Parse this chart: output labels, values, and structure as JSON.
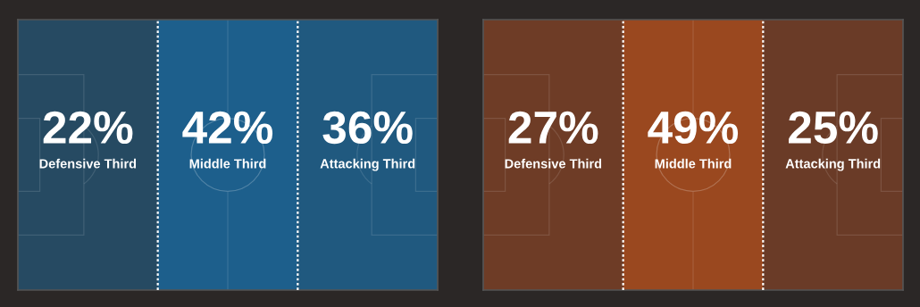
{
  "chart_data": [
    {
      "type": "heatmap",
      "categories": [
        "Defensive Third",
        "Middle Third",
        "Attacking Third"
      ],
      "y_categories": [
        null
      ],
      "cells": [
        [
          22,
          42,
          36
        ]
      ],
      "cell_labels": [
        [
          "22%",
          "42%",
          "36%"
        ]
      ],
      "colors": [
        "#264a62",
        "#1d5f8c"
      ]
    },
    {
      "type": "heatmap",
      "categories": [
        "Defensive Third",
        "Middle Third",
        "Attacking Third"
      ],
      "y_categories": [
        null
      ],
      "cells": [
        [
          27,
          49,
          25
        ]
      ],
      "cell_labels": [
        [
          "27%",
          "49%",
          "25%"
        ]
      ],
      "colors": [
        "#6a3b27",
        "#9a481f"
      ]
    }
  ]
}
